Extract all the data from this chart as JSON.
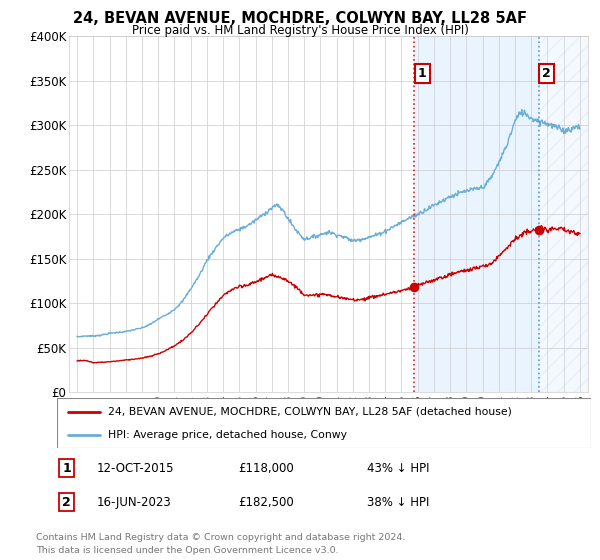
{
  "title": "24, BEVAN AVENUE, MOCHDRE, COLWYN BAY, LL28 5AF",
  "subtitle": "Price paid vs. HM Land Registry's House Price Index (HPI)",
  "ylim": [
    0,
    400000
  ],
  "yticks": [
    0,
    50000,
    100000,
    150000,
    200000,
    250000,
    300000,
    350000,
    400000
  ],
  "ytick_labels": [
    "£0",
    "£50K",
    "£100K",
    "£150K",
    "£200K",
    "£250K",
    "£300K",
    "£350K",
    "£400K"
  ],
  "xlim_start": 1994.5,
  "xlim_end": 2026.5,
  "hpi_color": "#6aaed6",
  "price_color": "#CC0000",
  "marker1_year": 2015.8,
  "marker2_year": 2023.45,
  "sale1_price": 118000,
  "sale2_price": 182500,
  "legend_line1": "24, BEVAN AVENUE, MOCHDRE, COLWYN BAY, LL28 5AF (detached house)",
  "legend_line2": "HPI: Average price, detached house, Conwy",
  "ann1_label": "1",
  "ann1_date": "12-OCT-2015",
  "ann1_price": "£118,000",
  "ann1_hpi": "43% ↓ HPI",
  "ann2_label": "2",
  "ann2_date": "16-JUN-2023",
  "ann2_price": "£182,500",
  "ann2_hpi": "38% ↓ HPI",
  "footnote1": "Contains HM Land Registry data © Crown copyright and database right 2024.",
  "footnote2": "This data is licensed under the Open Government Licence v3.0.",
  "background_color": "#FFFFFF",
  "grid_color": "#CCCCCC",
  "shade_color": "#DDEEFF",
  "hpi_anchors_x": [
    1995.0,
    1995.5,
    1996.0,
    1996.5,
    1997.0,
    1997.5,
    1998.0,
    1998.5,
    1999.0,
    1999.5,
    2000.0,
    2000.5,
    2001.0,
    2001.5,
    2002.0,
    2002.5,
    2003.0,
    2003.5,
    2004.0,
    2004.5,
    2005.0,
    2005.5,
    2006.0,
    2006.5,
    2007.0,
    2007.25,
    2007.5,
    2007.75,
    2008.0,
    2008.5,
    2009.0,
    2009.5,
    2010.0,
    2010.5,
    2011.0,
    2011.5,
    2012.0,
    2012.5,
    2013.0,
    2013.5,
    2014.0,
    2014.5,
    2015.0,
    2015.5,
    2016.0,
    2016.5,
    2017.0,
    2017.5,
    2018.0,
    2018.5,
    2019.0,
    2019.5,
    2020.0,
    2020.5,
    2021.0,
    2021.5,
    2022.0,
    2022.25,
    2022.5,
    2022.75,
    2023.0,
    2023.5,
    2024.0,
    2024.5,
    2025.0,
    2025.5,
    2026.0
  ],
  "hpi_anchors_y": [
    62000,
    63000,
    63000,
    64000,
    66000,
    67000,
    68000,
    70000,
    72000,
    76000,
    82000,
    87000,
    93000,
    102000,
    116000,
    130000,
    148000,
    161000,
    173000,
    179000,
    183000,
    187000,
    193000,
    200000,
    207000,
    210000,
    208000,
    203000,
    195000,
    182000,
    172000,
    174000,
    177000,
    180000,
    177000,
    174000,
    170000,
    172000,
    174000,
    177000,
    181000,
    186000,
    191000,
    196000,
    200000,
    205000,
    210000,
    215000,
    220000,
    223000,
    226000,
    228000,
    230000,
    240000,
    258000,
    278000,
    305000,
    312000,
    315000,
    312000,
    308000,
    305000,
    302000,
    298000,
    294000,
    296000,
    300000
  ],
  "price_anchors_x": [
    1995.0,
    1995.5,
    1996.0,
    1996.5,
    1997.0,
    1997.5,
    1998.0,
    1998.5,
    1999.0,
    1999.5,
    2000.0,
    2000.5,
    2001.0,
    2001.5,
    2002.0,
    2002.5,
    2003.0,
    2003.5,
    2004.0,
    2004.5,
    2005.0,
    2005.5,
    2006.0,
    2006.5,
    2007.0,
    2007.5,
    2008.0,
    2008.5,
    2009.0,
    2009.5,
    2010.0,
    2010.5,
    2011.0,
    2011.5,
    2012.0,
    2012.5,
    2013.0,
    2013.5,
    2014.0,
    2014.5,
    2015.0,
    2015.5,
    2015.8,
    2016.0,
    2016.5,
    2017.0,
    2017.5,
    2018.0,
    2018.5,
    2019.0,
    2019.5,
    2020.0,
    2020.5,
    2021.0,
    2021.5,
    2022.0,
    2022.5,
    2023.0,
    2023.45,
    2024.0,
    2024.5,
    2025.0,
    2025.5,
    2026.0
  ],
  "price_anchors_y": [
    35000,
    35500,
    33000,
    33500,
    34000,
    35000,
    36000,
    37000,
    38000,
    40000,
    43000,
    47000,
    52000,
    58000,
    66000,
    76000,
    87000,
    98000,
    108000,
    115000,
    118000,
    120000,
    124000,
    128000,
    131000,
    130000,
    125000,
    118000,
    110000,
    108000,
    110000,
    109000,
    107000,
    105000,
    104000,
    104000,
    106000,
    108000,
    110000,
    112000,
    114000,
    116000,
    118000,
    120000,
    123000,
    126000,
    129000,
    132000,
    135000,
    137000,
    139000,
    141000,
    144000,
    153000,
    163000,
    172000,
    178000,
    181000,
    182500,
    183000,
    183500,
    182000,
    180000,
    178000
  ]
}
